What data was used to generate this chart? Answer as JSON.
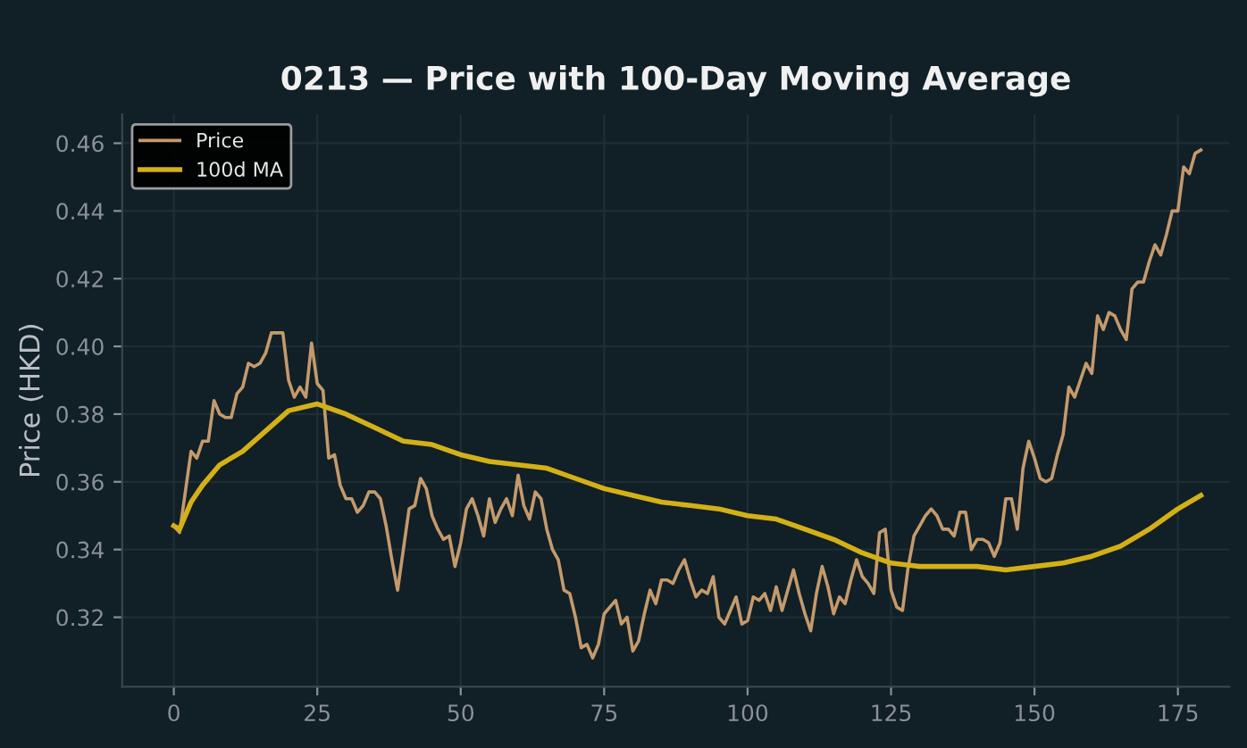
{
  "chart_data": {
    "type": "line",
    "title": "0213 — Price with 100-Day Moving Average",
    "ylabel": "Price (HKD)",
    "xlim": [
      -9,
      184
    ],
    "xticks": [
      0,
      25,
      50,
      75,
      100,
      125,
      150,
      175
    ],
    "ylim": [
      0.2995,
      0.4685
    ],
    "yticks": [
      {
        "value": 0.32,
        "label": "0.32"
      },
      {
        "value": 0.34,
        "label": "0.34"
      },
      {
        "value": 0.36,
        "label": "0.36"
      },
      {
        "value": 0.38,
        "label": "0.38"
      },
      {
        "value": 0.4,
        "label": "0.40"
      },
      {
        "value": 0.42,
        "label": "0.42"
      },
      {
        "value": 0.44,
        "label": "0.44"
      },
      {
        "value": 0.46,
        "label": "0.46"
      }
    ],
    "grid": true,
    "legend": "top left",
    "marker": "none",
    "line_style": "solid",
    "series": [
      {
        "name": "Price",
        "color": "#c49a6c",
        "x": [
          0,
          1,
          3,
          4,
          5,
          6,
          7,
          8,
          9,
          10,
          11,
          12,
          13,
          14,
          15,
          16,
          17,
          18,
          19,
          20,
          21,
          22,
          23,
          24,
          25,
          26,
          27,
          28,
          29,
          30,
          31,
          32,
          33,
          34,
          35,
          36,
          37,
          38,
          39,
          40,
          41,
          42,
          43,
          44,
          45,
          46,
          47,
          48,
          49,
          50,
          51,
          52,
          53,
          54,
          55,
          56,
          57,
          58,
          59,
          60,
          61,
          62,
          63,
          64,
          65,
          66,
          67,
          68,
          69,
          70,
          71,
          72,
          73,
          74,
          75,
          76,
          77,
          78,
          79,
          80,
          81,
          82,
          83,
          84,
          85,
          86,
          87,
          88,
          89,
          90,
          91,
          92,
          93,
          94,
          95,
          96,
          97,
          98,
          99,
          100,
          101,
          102,
          103,
          104,
          105,
          106,
          107,
          108,
          109,
          110,
          111,
          112,
          113,
          114,
          115,
          116,
          117,
          118,
          119,
          120,
          121,
          122,
          123,
          124,
          125,
          126,
          127,
          128,
          129,
          130,
          131,
          132,
          133,
          134,
          135,
          136,
          137,
          138,
          139,
          140,
          141,
          142,
          143,
          144,
          145,
          146,
          147,
          148,
          149,
          150,
          151,
          152,
          153,
          154,
          155,
          156,
          157,
          158,
          159,
          160,
          161,
          162,
          163,
          164,
          165,
          166,
          167,
          168,
          169,
          170,
          171,
          172,
          173,
          174,
          175,
          176,
          177,
          178,
          179
        ],
        "values": [
          0.347,
          0.345,
          0.369,
          0.367,
          0.372,
          0.372,
          0.384,
          0.38,
          0.379,
          0.379,
          0.386,
          0.388,
          0.395,
          0.394,
          0.395,
          0.398,
          0.404,
          0.404,
          0.404,
          0.39,
          0.385,
          0.388,
          0.385,
          0.401,
          0.389,
          0.387,
          0.367,
          0.368,
          0.359,
          0.355,
          0.355,
          0.351,
          0.353,
          0.357,
          0.357,
          0.355,
          0.347,
          0.337,
          0.328,
          0.34,
          0.352,
          0.353,
          0.361,
          0.358,
          0.35,
          0.346,
          0.343,
          0.344,
          0.335,
          0.342,
          0.352,
          0.355,
          0.35,
          0.344,
          0.355,
          0.348,
          0.352,
          0.355,
          0.35,
          0.362,
          0.353,
          0.349,
          0.357,
          0.355,
          0.346,
          0.34,
          0.337,
          0.328,
          0.327,
          0.32,
          0.311,
          0.312,
          0.308,
          0.312,
          0.321,
          0.323,
          0.325,
          0.318,
          0.32,
          0.31,
          0.313,
          0.321,
          0.328,
          0.324,
          0.331,
          0.331,
          0.33,
          0.334,
          0.337,
          0.331,
          0.326,
          0.328,
          0.327,
          0.332,
          0.32,
          0.318,
          0.322,
          0.326,
          0.318,
          0.319,
          0.326,
          0.325,
          0.327,
          0.322,
          0.329,
          0.322,
          0.328,
          0.334,
          0.327,
          0.321,
          0.316,
          0.327,
          0.335,
          0.329,
          0.321,
          0.326,
          0.324,
          0.331,
          0.337,
          0.332,
          0.33,
          0.327,
          0.345,
          0.346,
          0.328,
          0.323,
          0.322,
          0.335,
          0.344,
          0.347,
          0.35,
          0.352,
          0.35,
          0.346,
          0.346,
          0.344,
          0.351,
          0.351,
          0.34,
          0.343,
          0.343,
          0.342,
          0.338,
          0.342,
          0.355,
          0.355,
          0.346,
          0.364,
          0.372,
          0.367,
          0.361,
          0.36,
          0.361,
          0.368,
          0.374,
          0.388,
          0.385,
          0.39,
          0.395,
          0.392,
          0.409,
          0.405,
          0.41,
          0.409,
          0.405,
          0.402,
          0.417,
          0.419,
          0.419,
          0.425,
          0.43,
          0.427,
          0.433,
          0.44,
          0.44,
          0.453,
          0.451,
          0.457,
          0.458
        ]
      },
      {
        "name": "100d MA",
        "color": "#d4b017",
        "x": [
          0,
          1,
          3,
          5,
          8,
          12,
          16,
          20,
          25,
          30,
          35,
          40,
          45,
          50,
          55,
          60,
          65,
          70,
          75,
          80,
          85,
          90,
          95,
          100,
          105,
          110,
          115,
          120,
          125,
          130,
          135,
          140,
          145,
          150,
          155,
          160,
          165,
          170,
          175,
          179
        ],
        "values": [
          0.347,
          0.346,
          0.354,
          0.359,
          0.365,
          0.369,
          0.375,
          0.381,
          0.383,
          0.38,
          0.376,
          0.372,
          0.371,
          0.368,
          0.366,
          0.365,
          0.364,
          0.361,
          0.358,
          0.356,
          0.354,
          0.353,
          0.352,
          0.35,
          0.349,
          0.346,
          0.343,
          0.339,
          0.336,
          0.335,
          0.335,
          0.335,
          0.334,
          0.335,
          0.336,
          0.338,
          0.341,
          0.346,
          0.352,
          0.356
        ]
      }
    ]
  }
}
